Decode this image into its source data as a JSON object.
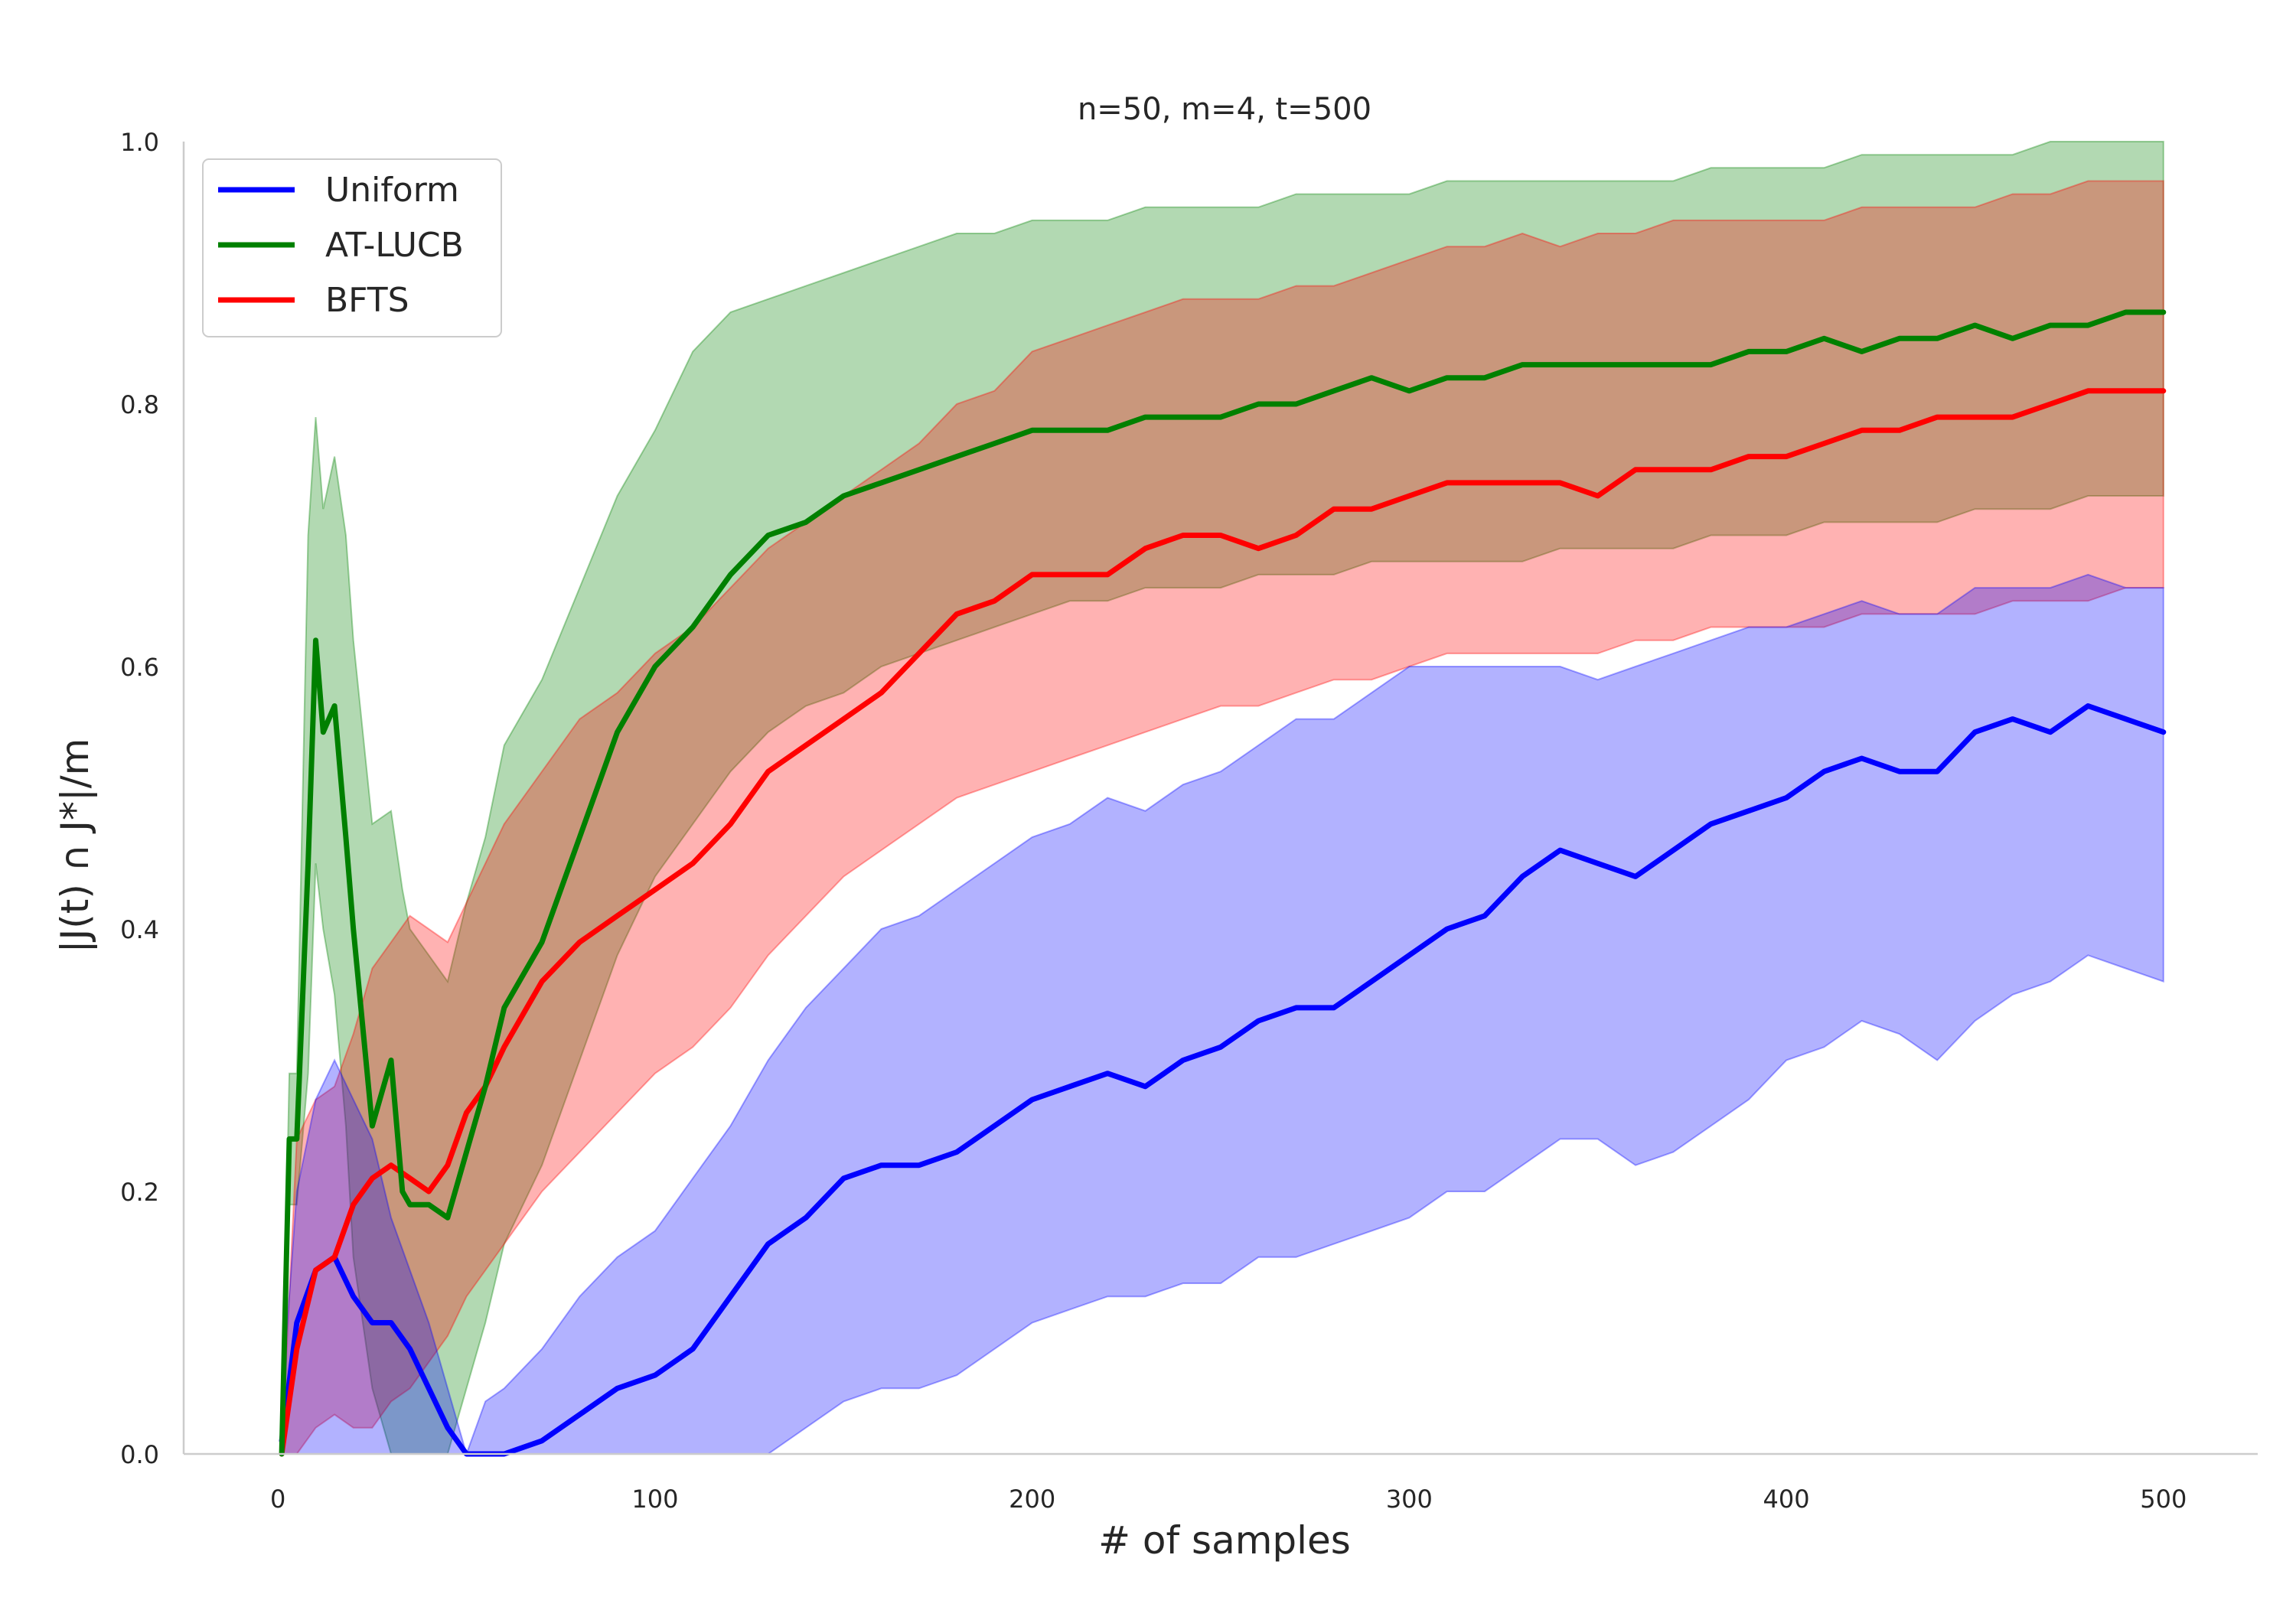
{
  "chart_data": {
    "type": "line",
    "title": "n=50, m=4, t=500",
    "xlabel": "# of samples",
    "ylabel": "|J(t) ∩ J*|/m",
    "xlim": [
      -25,
      525
    ],
    "ylim": [
      0.0,
      1.0
    ],
    "xticks": [
      0,
      100,
      200,
      300,
      400,
      500
    ],
    "xtick_labels": [
      "0",
      "100",
      "200",
      "300",
      "400",
      "500"
    ],
    "yticks": [
      0.0,
      0.2,
      0.4,
      0.6,
      0.8,
      1.0
    ],
    "ytick_labels": [
      "0.0",
      "0.2",
      "0.4",
      "0.6",
      "0.8",
      "1.0"
    ],
    "grid": false,
    "legend_position": "top-left",
    "colors": {
      "Uniform": "#0000ff",
      "AT-LUCB": "#008000",
      "BFTS": "#ff0000"
    },
    "series": [
      {
        "name": "Uniform",
        "color": "#0000ff",
        "x": [
          1,
          5,
          10,
          15,
          20,
          25,
          30,
          35,
          40,
          45,
          50,
          55,
          60,
          70,
          80,
          90,
          100,
          110,
          120,
          130,
          140,
          150,
          160,
          170,
          180,
          190,
          200,
          210,
          220,
          230,
          240,
          250,
          260,
          270,
          280,
          290,
          300,
          310,
          320,
          330,
          340,
          350,
          360,
          370,
          380,
          390,
          400,
          410,
          420,
          430,
          440,
          450,
          460,
          470,
          480,
          490,
          500
        ],
        "mean": [
          0.01,
          0.1,
          0.14,
          0.15,
          0.12,
          0.1,
          0.1,
          0.08,
          0.05,
          0.02,
          0.0,
          0.0,
          0.0,
          0.01,
          0.03,
          0.05,
          0.06,
          0.08,
          0.12,
          0.16,
          0.18,
          0.21,
          0.22,
          0.22,
          0.23,
          0.25,
          0.27,
          0.28,
          0.29,
          0.28,
          0.3,
          0.31,
          0.33,
          0.34,
          0.34,
          0.36,
          0.38,
          0.4,
          0.41,
          0.44,
          0.46,
          0.45,
          0.44,
          0.46,
          0.48,
          0.49,
          0.5,
          0.52,
          0.53,
          0.52,
          0.52,
          0.55,
          0.56,
          0.55,
          0.57,
          0.56,
          0.55
        ],
        "lower": [
          0.0,
          0.0,
          0.0,
          0.0,
          0.0,
          0.0,
          0.0,
          0.0,
          0.0,
          0.0,
          0.0,
          0.0,
          0.0,
          0.0,
          0.0,
          0.0,
          0.0,
          0.0,
          0.0,
          0.0,
          0.02,
          0.04,
          0.05,
          0.05,
          0.06,
          0.08,
          0.1,
          0.11,
          0.12,
          0.12,
          0.13,
          0.13,
          0.15,
          0.15,
          0.16,
          0.17,
          0.18,
          0.2,
          0.2,
          0.22,
          0.24,
          0.24,
          0.22,
          0.23,
          0.25,
          0.27,
          0.3,
          0.31,
          0.33,
          0.32,
          0.3,
          0.33,
          0.35,
          0.36,
          0.38,
          0.37,
          0.36
        ],
        "upper": [
          0.04,
          0.2,
          0.27,
          0.3,
          0.27,
          0.24,
          0.18,
          0.14,
          0.1,
          0.05,
          0.0,
          0.04,
          0.05,
          0.08,
          0.12,
          0.15,
          0.17,
          0.21,
          0.25,
          0.3,
          0.34,
          0.37,
          0.4,
          0.41,
          0.43,
          0.45,
          0.47,
          0.48,
          0.5,
          0.49,
          0.51,
          0.52,
          0.54,
          0.56,
          0.56,
          0.58,
          0.6,
          0.6,
          0.6,
          0.6,
          0.6,
          0.59,
          0.6,
          0.61,
          0.62,
          0.63,
          0.63,
          0.64,
          0.65,
          0.64,
          0.64,
          0.66,
          0.66,
          0.66,
          0.67,
          0.66,
          0.66
        ]
      },
      {
        "name": "AT-LUCB",
        "color": "#008000",
        "x": [
          1,
          3,
          5,
          8,
          10,
          12,
          15,
          18,
          20,
          25,
          30,
          33,
          35,
          40,
          45,
          50,
          55,
          60,
          70,
          80,
          90,
          100,
          110,
          120,
          130,
          140,
          150,
          160,
          170,
          180,
          190,
          200,
          210,
          220,
          230,
          240,
          250,
          260,
          270,
          280,
          290,
          300,
          310,
          320,
          330,
          340,
          350,
          360,
          370,
          380,
          390,
          400,
          410,
          420,
          430,
          440,
          450,
          460,
          470,
          480,
          490,
          500
        ],
        "mean": [
          0.0,
          0.24,
          0.24,
          0.45,
          0.62,
          0.55,
          0.57,
          0.47,
          0.4,
          0.25,
          0.3,
          0.2,
          0.19,
          0.19,
          0.18,
          0.23,
          0.28,
          0.34,
          0.39,
          0.47,
          0.55,
          0.6,
          0.63,
          0.67,
          0.7,
          0.71,
          0.73,
          0.74,
          0.75,
          0.76,
          0.77,
          0.78,
          0.78,
          0.78,
          0.79,
          0.79,
          0.79,
          0.8,
          0.8,
          0.81,
          0.82,
          0.81,
          0.82,
          0.82,
          0.83,
          0.83,
          0.83,
          0.83,
          0.83,
          0.83,
          0.84,
          0.84,
          0.85,
          0.84,
          0.85,
          0.85,
          0.86,
          0.85,
          0.86,
          0.86,
          0.87,
          0.87
        ],
        "lower": [
          0.0,
          0.19,
          0.19,
          0.29,
          0.45,
          0.4,
          0.35,
          0.25,
          0.15,
          0.05,
          0.0,
          0.0,
          0.0,
          0.0,
          0.0,
          0.05,
          0.1,
          0.16,
          0.22,
          0.3,
          0.38,
          0.44,
          0.48,
          0.52,
          0.55,
          0.57,
          0.58,
          0.6,
          0.61,
          0.62,
          0.63,
          0.64,
          0.65,
          0.65,
          0.66,
          0.66,
          0.66,
          0.67,
          0.67,
          0.67,
          0.68,
          0.68,
          0.68,
          0.68,
          0.68,
          0.69,
          0.69,
          0.69,
          0.69,
          0.7,
          0.7,
          0.7,
          0.71,
          0.71,
          0.71,
          0.71,
          0.72,
          0.72,
          0.72,
          0.73,
          0.73,
          0.73
        ],
        "upper": [
          0.0,
          0.29,
          0.29,
          0.7,
          0.79,
          0.72,
          0.76,
          0.7,
          0.62,
          0.48,
          0.49,
          0.43,
          0.4,
          0.38,
          0.36,
          0.42,
          0.47,
          0.54,
          0.59,
          0.66,
          0.73,
          0.78,
          0.84,
          0.87,
          0.88,
          0.89,
          0.9,
          0.91,
          0.92,
          0.93,
          0.93,
          0.94,
          0.94,
          0.94,
          0.95,
          0.95,
          0.95,
          0.95,
          0.96,
          0.96,
          0.96,
          0.96,
          0.97,
          0.97,
          0.97,
          0.97,
          0.97,
          0.97,
          0.97,
          0.98,
          0.98,
          0.98,
          0.98,
          0.99,
          0.99,
          0.99,
          0.99,
          0.99,
          1.0,
          1.0,
          1.0,
          1.0
        ]
      },
      {
        "name": "BFTS",
        "color": "#ff0000",
        "x": [
          1,
          5,
          10,
          15,
          20,
          25,
          30,
          35,
          40,
          45,
          50,
          55,
          60,
          70,
          80,
          90,
          100,
          110,
          120,
          130,
          140,
          150,
          160,
          170,
          180,
          190,
          200,
          210,
          220,
          230,
          240,
          250,
          260,
          270,
          280,
          290,
          300,
          310,
          320,
          330,
          340,
          350,
          360,
          370,
          380,
          390,
          400,
          410,
          420,
          430,
          440,
          450,
          460,
          470,
          480,
          490,
          500
        ],
        "mean": [
          0.0,
          0.08,
          0.14,
          0.15,
          0.19,
          0.21,
          0.22,
          0.21,
          0.2,
          0.22,
          0.26,
          0.28,
          0.31,
          0.36,
          0.39,
          0.41,
          0.43,
          0.45,
          0.48,
          0.52,
          0.54,
          0.56,
          0.58,
          0.61,
          0.64,
          0.65,
          0.67,
          0.67,
          0.67,
          0.69,
          0.7,
          0.7,
          0.69,
          0.7,
          0.72,
          0.72,
          0.73,
          0.74,
          0.74,
          0.74,
          0.74,
          0.73,
          0.75,
          0.75,
          0.75,
          0.76,
          0.76,
          0.77,
          0.78,
          0.78,
          0.79,
          0.79,
          0.79,
          0.8,
          0.81,
          0.81,
          0.81
        ],
        "lower": [
          0.0,
          0.0,
          0.02,
          0.03,
          0.02,
          0.02,
          0.04,
          0.05,
          0.07,
          0.09,
          0.12,
          0.14,
          0.16,
          0.2,
          0.23,
          0.26,
          0.29,
          0.31,
          0.34,
          0.38,
          0.41,
          0.44,
          0.46,
          0.48,
          0.5,
          0.51,
          0.52,
          0.53,
          0.54,
          0.55,
          0.56,
          0.57,
          0.57,
          0.58,
          0.59,
          0.59,
          0.6,
          0.61,
          0.61,
          0.61,
          0.61,
          0.61,
          0.62,
          0.62,
          0.63,
          0.63,
          0.63,
          0.63,
          0.64,
          0.64,
          0.64,
          0.64,
          0.65,
          0.65,
          0.65,
          0.66,
          0.66
        ],
        "upper": [
          0.0,
          0.24,
          0.27,
          0.28,
          0.32,
          0.37,
          0.39,
          0.41,
          0.4,
          0.39,
          0.42,
          0.45,
          0.48,
          0.52,
          0.56,
          0.58,
          0.61,
          0.63,
          0.66,
          0.69,
          0.71,
          0.73,
          0.75,
          0.77,
          0.8,
          0.81,
          0.84,
          0.85,
          0.86,
          0.87,
          0.88,
          0.88,
          0.88,
          0.89,
          0.89,
          0.9,
          0.91,
          0.92,
          0.92,
          0.93,
          0.92,
          0.93,
          0.93,
          0.94,
          0.94,
          0.94,
          0.94,
          0.94,
          0.95,
          0.95,
          0.95,
          0.95,
          0.96,
          0.96,
          0.97,
          0.97,
          0.97
        ]
      }
    ]
  }
}
